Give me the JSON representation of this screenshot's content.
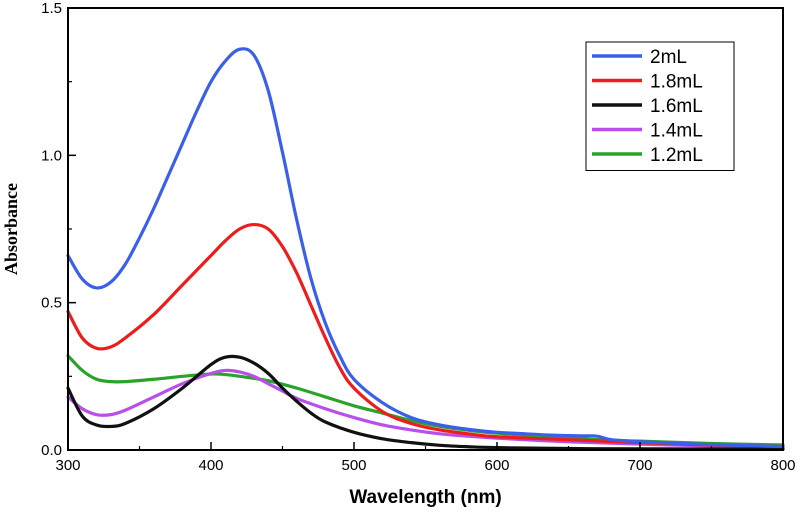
{
  "chart_data": {
    "type": "line",
    "title": "",
    "xlabel": "Wavelength (nm)",
    "ylabel": "Absorbance",
    "xlim": [
      300,
      800
    ],
    "ylim": [
      0.0,
      1.5
    ],
    "x_ticks": [
      300,
      400,
      500,
      600,
      700,
      800
    ],
    "x_tick_labels": [
      "300",
      "400",
      "500",
      "600",
      "700",
      "800"
    ],
    "y_ticks": [
      0.0,
      0.5,
      1.0,
      1.5
    ],
    "y_tick_labels": [
      "0.0",
      "0.5",
      "1.0",
      "1.5"
    ],
    "legend_position": "top-right",
    "grid": false,
    "series": [
      {
        "name": "2mL",
        "color": "#3a5fe8",
        "points": [
          [
            300,
            0.66
          ],
          [
            310,
            0.58
          ],
          [
            320,
            0.55
          ],
          [
            330,
            0.57
          ],
          [
            340,
            0.63
          ],
          [
            350,
            0.72
          ],
          [
            360,
            0.82
          ],
          [
            370,
            0.93
          ],
          [
            380,
            1.04
          ],
          [
            390,
            1.15
          ],
          [
            400,
            1.25
          ],
          [
            410,
            1.32
          ],
          [
            420,
            1.36
          ],
          [
            430,
            1.34
          ],
          [
            440,
            1.22
          ],
          [
            450,
            1.01
          ],
          [
            460,
            0.78
          ],
          [
            470,
            0.58
          ],
          [
            480,
            0.43
          ],
          [
            490,
            0.32
          ],
          [
            500,
            0.24
          ],
          [
            520,
            0.16
          ],
          [
            540,
            0.11
          ],
          [
            560,
            0.085
          ],
          [
            580,
            0.07
          ],
          [
            600,
            0.06
          ],
          [
            620,
            0.055
          ],
          [
            640,
            0.05
          ],
          [
            660,
            0.048
          ],
          [
            670,
            0.047
          ],
          [
            680,
            0.035
          ],
          [
            700,
            0.028
          ],
          [
            750,
            0.018
          ],
          [
            800,
            0.012
          ]
        ]
      },
      {
        "name": "1.8mL",
        "color": "#ee1c1c",
        "points": [
          [
            300,
            0.47
          ],
          [
            310,
            0.38
          ],
          [
            320,
            0.345
          ],
          [
            330,
            0.35
          ],
          [
            340,
            0.38
          ],
          [
            360,
            0.46
          ],
          [
            380,
            0.56
          ],
          [
            400,
            0.66
          ],
          [
            410,
            0.71
          ],
          [
            420,
            0.75
          ],
          [
            430,
            0.765
          ],
          [
            440,
            0.75
          ],
          [
            450,
            0.69
          ],
          [
            460,
            0.6
          ],
          [
            470,
            0.49
          ],
          [
            480,
            0.38
          ],
          [
            490,
            0.28
          ],
          [
            500,
            0.21
          ],
          [
            520,
            0.13
          ],
          [
            540,
            0.09
          ],
          [
            560,
            0.068
          ],
          [
            580,
            0.055
          ],
          [
            600,
            0.045
          ],
          [
            650,
            0.035
          ],
          [
            700,
            0.025
          ],
          [
            750,
            0.017
          ],
          [
            800,
            0.012
          ]
        ]
      },
      {
        "name": "1.6mL",
        "color": "#111111",
        "points": [
          [
            300,
            0.21
          ],
          [
            310,
            0.115
          ],
          [
            320,
            0.085
          ],
          [
            330,
            0.08
          ],
          [
            340,
            0.09
          ],
          [
            360,
            0.14
          ],
          [
            380,
            0.21
          ],
          [
            400,
            0.29
          ],
          [
            410,
            0.315
          ],
          [
            420,
            0.315
          ],
          [
            430,
            0.295
          ],
          [
            440,
            0.26
          ],
          [
            450,
            0.21
          ],
          [
            460,
            0.165
          ],
          [
            470,
            0.125
          ],
          [
            480,
            0.095
          ],
          [
            500,
            0.06
          ],
          [
            520,
            0.038
          ],
          [
            540,
            0.025
          ],
          [
            560,
            0.016
          ],
          [
            580,
            0.011
          ],
          [
            600,
            0.008
          ],
          [
            650,
            0.005
          ],
          [
            700,
            0.004
          ],
          [
            800,
            0.003
          ]
        ]
      },
      {
        "name": "1.4mL",
        "color": "#b84fe8",
        "points": [
          [
            300,
            0.18
          ],
          [
            310,
            0.14
          ],
          [
            320,
            0.12
          ],
          [
            330,
            0.12
          ],
          [
            340,
            0.135
          ],
          [
            360,
            0.18
          ],
          [
            380,
            0.225
          ],
          [
            400,
            0.26
          ],
          [
            410,
            0.27
          ],
          [
            420,
            0.265
          ],
          [
            430,
            0.25
          ],
          [
            440,
            0.225
          ],
          [
            450,
            0.2
          ],
          [
            460,
            0.175
          ],
          [
            480,
            0.14
          ],
          [
            500,
            0.11
          ],
          [
            520,
            0.085
          ],
          [
            540,
            0.068
          ],
          [
            560,
            0.055
          ],
          [
            580,
            0.047
          ],
          [
            600,
            0.04
          ],
          [
            650,
            0.028
          ],
          [
            700,
            0.02
          ],
          [
            750,
            0.014
          ],
          [
            800,
            0.01
          ]
        ]
      },
      {
        "name": "1.2mL",
        "color": "#2aa32a",
        "points": [
          [
            300,
            0.32
          ],
          [
            310,
            0.27
          ],
          [
            320,
            0.24
          ],
          [
            330,
            0.232
          ],
          [
            340,
            0.232
          ],
          [
            360,
            0.24
          ],
          [
            380,
            0.25
          ],
          [
            400,
            0.258
          ],
          [
            410,
            0.256
          ],
          [
            420,
            0.25
          ],
          [
            440,
            0.235
          ],
          [
            460,
            0.21
          ],
          [
            480,
            0.18
          ],
          [
            500,
            0.15
          ],
          [
            520,
            0.125
          ],
          [
            540,
            0.1
          ],
          [
            560,
            0.08
          ],
          [
            580,
            0.067
          ],
          [
            600,
            0.057
          ],
          [
            650,
            0.04
          ],
          [
            700,
            0.03
          ],
          [
            750,
            0.022
          ],
          [
            800,
            0.017
          ]
        ]
      }
    ]
  }
}
